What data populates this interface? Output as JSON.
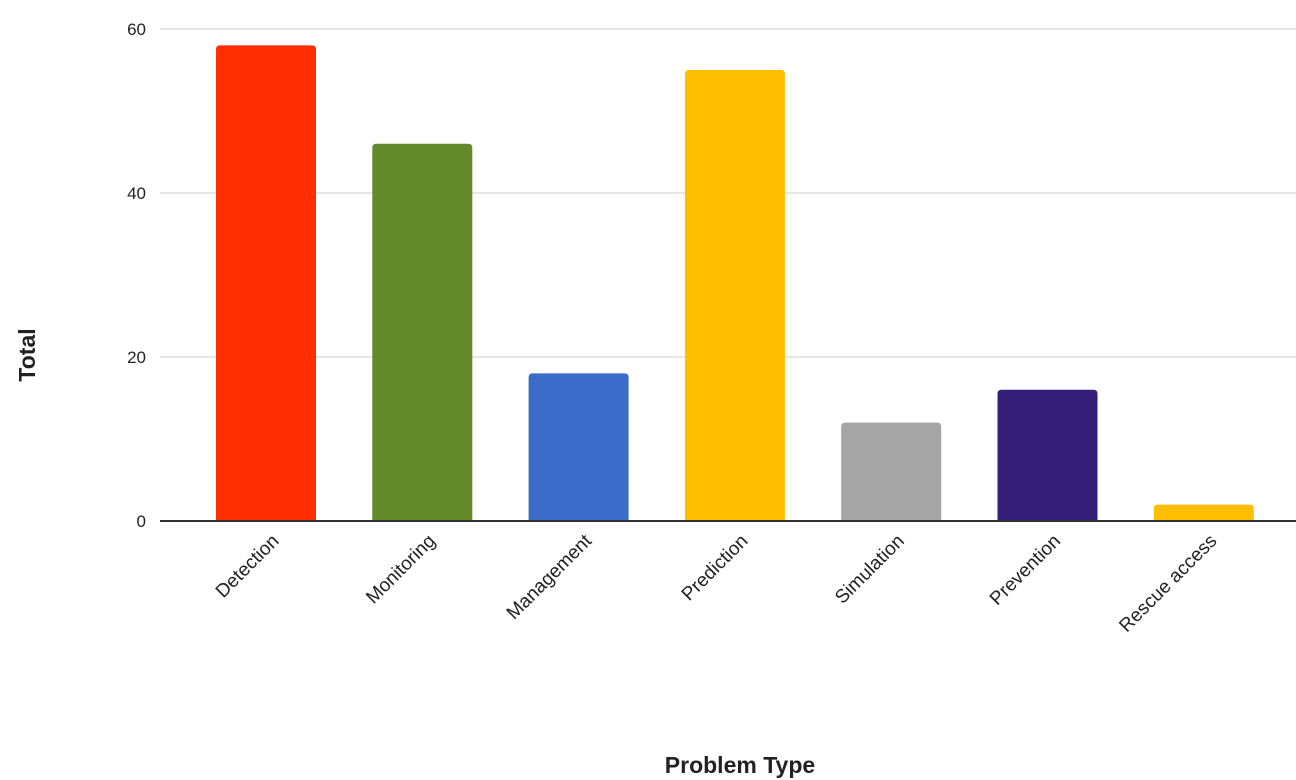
{
  "chart_data": {
    "type": "bar",
    "title": "",
    "xlabel": "Problem Type",
    "ylabel": "Total",
    "categories": [
      "Detection",
      "Monitoring",
      "Management",
      "Prediction",
      "Simulation",
      "Prevention",
      "Rescue access"
    ],
    "values": [
      58,
      46,
      18,
      55,
      12,
      16,
      2
    ],
    "colors": [
      "#ff2d00",
      "#63892a",
      "#3d6bc9",
      "#ffbf00",
      "#a5a5a5",
      "#351f78",
      "#ffbf00"
    ],
    "ylim": [
      0,
      60
    ],
    "yticks": [
      0,
      20,
      40,
      60
    ],
    "grid": true,
    "legend": "none"
  }
}
